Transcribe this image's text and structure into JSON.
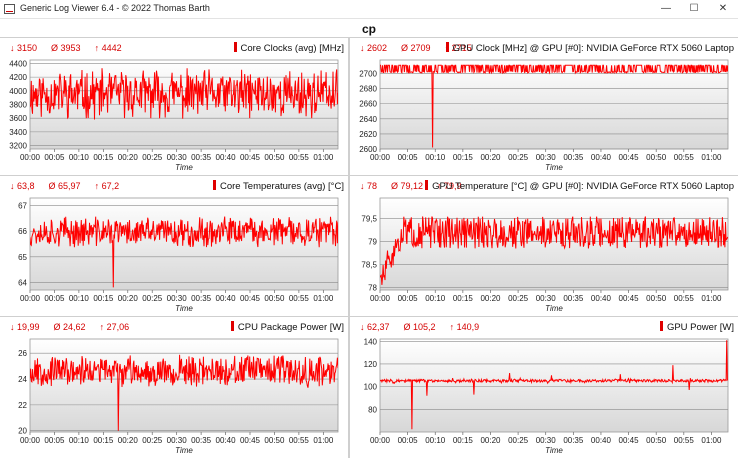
{
  "window": {
    "title": "Generic Log Viewer 6.4 - © 2022 Thomas Barth",
    "minimize_glyph": "—",
    "maximize_glyph": "☐",
    "close_glyph": "✕"
  },
  "page_title": "cp",
  "colors": {
    "series": "#ff0000",
    "stats": "#d40000",
    "plot_bg_top": "#ffffff",
    "plot_bg_bottom": "#d7d7d7",
    "grid": "#8a8a8a"
  },
  "chart_data": [
    {
      "id": "cpu-clocks",
      "type": "line",
      "title": "Core Clocks (avg) [MHz]",
      "xlabel": "Time",
      "stats": {
        "min": "3150",
        "avg": "3953",
        "max": "4442"
      },
      "ylim": [
        3150,
        4450
      ],
      "yticks": [
        3200,
        3400,
        3600,
        3800,
        4000,
        4200,
        4400
      ],
      "ytick_labels": [
        "3200",
        "3400",
        "3600",
        "3800",
        "4000",
        "4200",
        "4400"
      ],
      "xticks": [
        "00:00",
        "00:05",
        "00:10",
        "00:15",
        "00:20",
        "00:25",
        "00:30",
        "00:35",
        "00:40",
        "00:45",
        "00:50",
        "00:55",
        "01:00"
      ],
      "x_end_minutes": 63,
      "series": [
        {
          "values": {
            "gen": "noise",
            "mean": 3953,
            "amp": 300,
            "min": 3150,
            "max": 4442,
            "seed": 11
          }
        }
      ],
      "grid": true
    },
    {
      "id": "gpu-clock",
      "type": "line",
      "title": "GPU Clock [MHz] @ GPU [#0]: NVIDIA GeForce RTX 5060 Laptop",
      "xlabel": "Time",
      "stats": {
        "min": "2602",
        "avg": "2709",
        "max": "2715"
      },
      "ylim": [
        2600,
        2718
      ],
      "yticks": [
        2600,
        2620,
        2640,
        2660,
        2680,
        2700
      ],
      "ytick_labels": [
        "2600",
        "2620",
        "2640",
        "2660",
        "2680",
        "2700"
      ],
      "xticks": [
        "00:00",
        "00:05",
        "00:10",
        "00:15",
        "00:20",
        "00:25",
        "00:30",
        "00:35",
        "00:40",
        "00:45",
        "00:50",
        "00:55",
        "01:00"
      ],
      "x_end_minutes": 63,
      "series": [
        {
          "values": {
            "gen": "band",
            "low": 2701,
            "high": 2711,
            "dip_at": 9.5,
            "dip_value": 2602,
            "seed": 23
          }
        }
      ],
      "grid": true
    },
    {
      "id": "cpu-temp",
      "type": "line",
      "title": "Core Temperatures (avg) [°C]",
      "xlabel": "Time",
      "stats": {
        "min": "63,8",
        "avg": "65,97",
        "max": "67,2"
      },
      "ylim": [
        63.7,
        67.3
      ],
      "yticks": [
        64,
        65,
        66,
        67
      ],
      "ytick_labels": [
        "64",
        "65",
        "66",
        "67"
      ],
      "xticks": [
        "00:00",
        "00:05",
        "00:10",
        "00:15",
        "00:20",
        "00:25",
        "00:30",
        "00:35",
        "00:40",
        "00:45",
        "00:50",
        "00:55",
        "01:00"
      ],
      "x_end_minutes": 63,
      "series": [
        {
          "values": {
            "gen": "noise",
            "mean": 65.97,
            "amp": 0.5,
            "min": 63.8,
            "max": 67.2,
            "seed": 37,
            "dip_at": 17,
            "dip_value": 63.8
          }
        }
      ],
      "grid": true
    },
    {
      "id": "gpu-temp",
      "type": "line",
      "title": "GPU Temperature [°C] @ GPU [#0]: NVIDIA GeForce RTX 5060 Laptop",
      "xlabel": "Time",
      "stats": {
        "min": "78",
        "avg": "79,12",
        "max": "79,9"
      },
      "ylim": [
        77.95,
        79.95
      ],
      "yticks": [
        78,
        78.5,
        79,
        79.5
      ],
      "ytick_labels": [
        "78",
        "78,5",
        "79",
        "79,5"
      ],
      "xticks": [
        "00:00",
        "00:05",
        "00:10",
        "00:15",
        "00:20",
        "00:25",
        "00:30",
        "00:35",
        "00:40",
        "00:45",
        "00:50",
        "00:55",
        "01:00"
      ],
      "x_end_minutes": 63,
      "series": [
        {
          "values": {
            "gen": "warmup",
            "mean": 79.2,
            "amp": 0.25,
            "start": 78.1,
            "min": 78,
            "max": 79.9,
            "seed": 51
          }
        }
      ],
      "grid": true
    },
    {
      "id": "cpu-power",
      "type": "line",
      "title": "CPU Package Power [W]",
      "xlabel": "Time",
      "stats": {
        "min": "19,99",
        "avg": "24,62",
        "max": "27,06"
      },
      "ylim": [
        19.9,
        27.1
      ],
      "yticks": [
        20,
        22,
        24,
        26
      ],
      "ytick_labels": [
        "20",
        "22",
        "24",
        "26"
      ],
      "xticks": [
        "00:00",
        "00:05",
        "00:10",
        "00:15",
        "00:20",
        "00:25",
        "00:30",
        "00:35",
        "00:40",
        "00:45",
        "00:50",
        "00:55",
        "01:00"
      ],
      "x_end_minutes": 63,
      "series": [
        {
          "values": {
            "gen": "noise",
            "mean": 24.62,
            "amp": 1.0,
            "min": 19.99,
            "max": 27.06,
            "seed": 67,
            "dip_at": 18,
            "dip_value": 19.99
          }
        }
      ],
      "grid": true
    },
    {
      "id": "gpu-power",
      "type": "line",
      "title": "GPU Power [W]",
      "xlabel": "Time",
      "stats": {
        "min": "62,37",
        "avg": "105,2",
        "max": "140,9"
      },
      "ylim": [
        60,
        142
      ],
      "yticks": [
        80,
        100,
        120,
        140
      ],
      "ytick_labels": [
        "80",
        "100",
        "120",
        "140"
      ],
      "xticks": [
        "00:00",
        "00:05",
        "00:10",
        "00:15",
        "00:20",
        "00:25",
        "00:30",
        "00:35",
        "00:40",
        "00:45",
        "00:50",
        "00:55",
        "01:00"
      ],
      "x_end_minutes": 63,
      "series": [
        {
          "values": {
            "gen": "flat",
            "mean": 105.2,
            "amp": 1.2,
            "seed": 83,
            "spikes": [
              [
                5.8,
                62.37
              ],
              [
                8.5,
                92
              ],
              [
                17,
                93
              ],
              [
                23.5,
                112
              ],
              [
                31,
                110
              ],
              [
                43.5,
                111
              ],
              [
                53,
                119
              ],
              [
                56,
                97
              ],
              [
                62.8,
                140.9
              ]
            ]
          }
        }
      ],
      "grid": true
    }
  ]
}
